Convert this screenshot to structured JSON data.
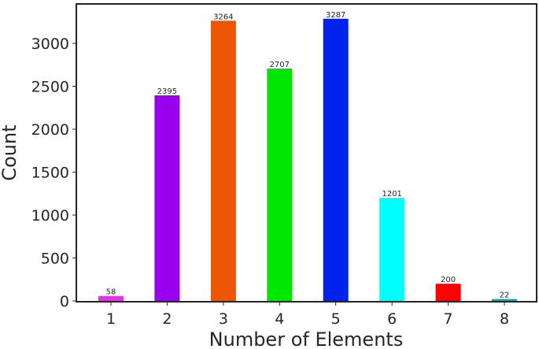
{
  "chart_data": {
    "type": "bar",
    "title": "",
    "xlabel": "Number of Elements",
    "ylabel": "Count",
    "categories": [
      "1",
      "2",
      "3",
      "4",
      "5",
      "6",
      "7",
      "8"
    ],
    "values": [
      58,
      2395,
      3264,
      2707,
      3287,
      1201,
      200,
      22
    ],
    "colors": [
      "#e632e6",
      "#9900ee",
      "#ee5500",
      "#00e600",
      "#0022ee",
      "#00ffff",
      "#ff0000",
      "#00aaaa"
    ],
    "ylim": [
      0,
      3450
    ],
    "yticks": [
      0,
      500,
      1000,
      1500,
      2000,
      2500,
      3000
    ],
    "grid": false,
    "legend": "none"
  }
}
